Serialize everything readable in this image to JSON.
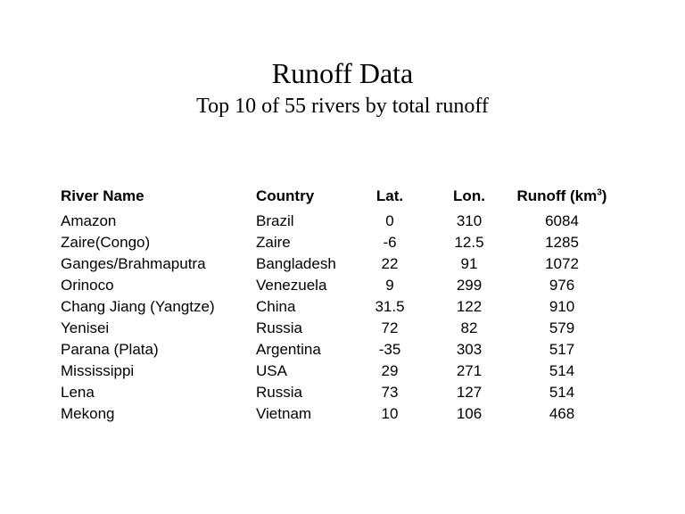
{
  "title": "Runoff Data",
  "subtitle": "Top 10 of 55 rivers by total runoff",
  "table": {
    "headers": [
      "River Name",
      "Country",
      "Lat.",
      "Lon.",
      "Runoff (km",
      "3",
      ")"
    ],
    "rows": [
      [
        "Amazon",
        "Brazil",
        "0",
        "310",
        "6084"
      ],
      [
        "Zaire(Congo)",
        "Zaire",
        "-6",
        "12.5",
        "1285"
      ],
      [
        "Ganges/Brahmaputra",
        "Bangladesh",
        "22",
        "91",
        "1072"
      ],
      [
        "Orinoco",
        "Venezuela",
        "9",
        "299",
        "976"
      ],
      [
        "Chang Jiang (Yangtze)",
        "China",
        "31.5",
        "122",
        "910"
      ],
      [
        "Yenisei",
        "Russia",
        "72",
        "82",
        "579"
      ],
      [
        "Parana (Plata)",
        "Argentina",
        "-35",
        "303",
        "517"
      ],
      [
        "Mississippi",
        "USA",
        "29",
        "271",
        "514"
      ],
      [
        "Lena",
        "Russia",
        "73",
        "127",
        "514"
      ],
      [
        "Mekong",
        "Vietnam",
        "10",
        "106",
        "468"
      ]
    ]
  }
}
